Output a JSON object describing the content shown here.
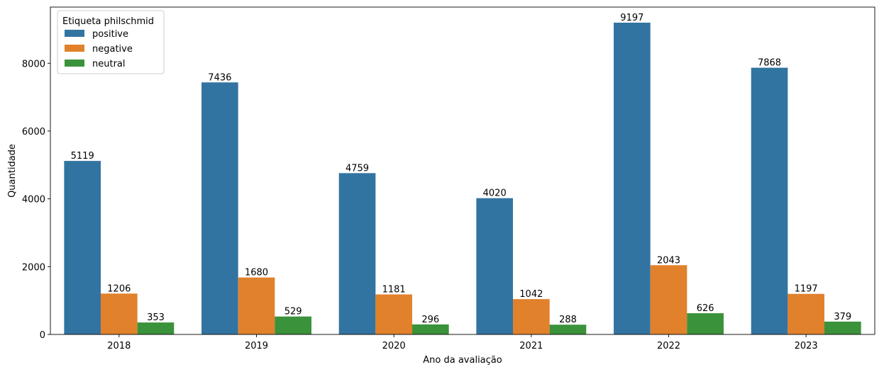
{
  "chart_data": {
    "type": "bar",
    "title": "",
    "xlabel": "Ano da avaliação",
    "ylabel": "Quantidade",
    "categories": [
      "2018",
      "2019",
      "2020",
      "2021",
      "2022",
      "2023"
    ],
    "ylim": [
      0,
      9657
    ],
    "yticks": [
      0,
      2000,
      4000,
      6000,
      8000
    ],
    "grid": false,
    "legend": {
      "title": "Etiqueta philschmid",
      "placement": "top-left"
    },
    "series": [
      {
        "name": "positive",
        "color": "#3274a1",
        "values": [
          5119,
          7436,
          4759,
          4020,
          9197,
          7868
        ]
      },
      {
        "name": "negative",
        "color": "#e1812c",
        "values": [
          1206,
          1680,
          1181,
          1042,
          2043,
          1197
        ]
      },
      {
        "name": "neutral",
        "color": "#3a923a",
        "values": [
          353,
          529,
          296,
          288,
          626,
          379
        ]
      }
    ]
  }
}
